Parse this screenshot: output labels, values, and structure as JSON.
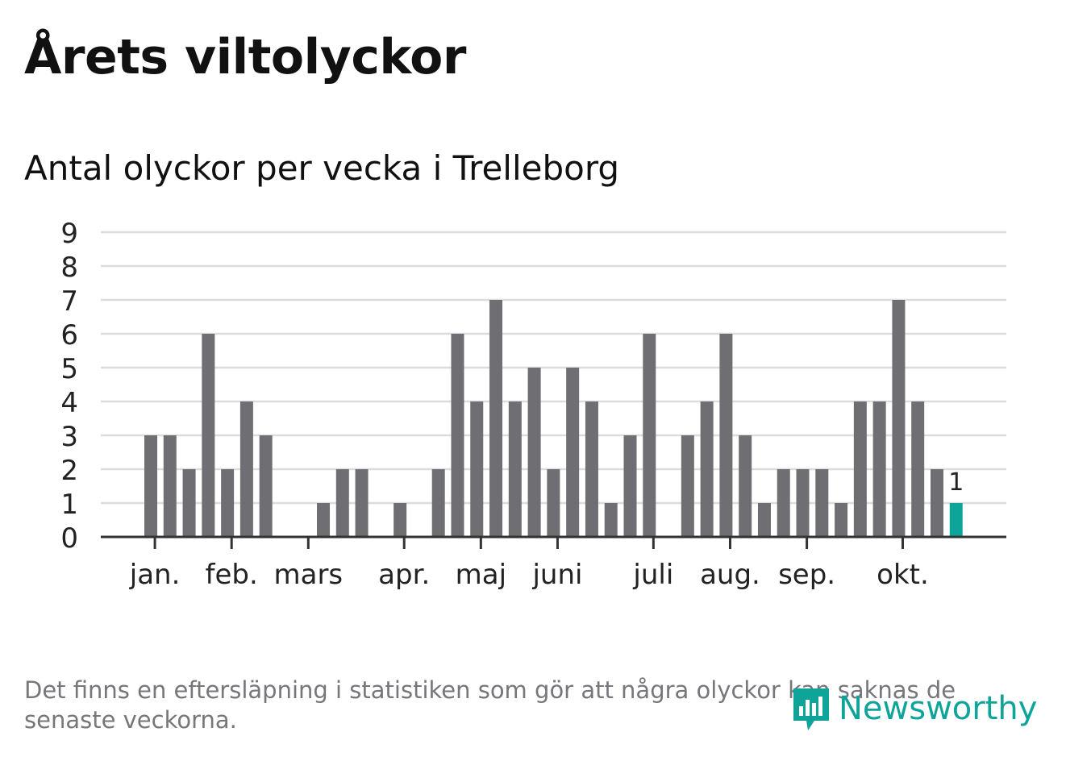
{
  "title": "Årets viltolyckor",
  "subtitle": "Antal olyckor per vecka i Trelleborg",
  "footnote": "Det finns en eftersläpning i statistiken som gör att några olyckor kan saknas de senaste veckorna.",
  "logo": {
    "text": "Newsworthy",
    "icon": "newsworthy-chart-bubble-icon"
  },
  "colors": {
    "bar": "#6f6e73",
    "highlight": "#0ea49a",
    "grid": "#dcdcdc",
    "axis": "#333333",
    "text": "#222222",
    "footnote": "#76767b"
  },
  "chart_data": {
    "type": "bar",
    "title": "Antal olyckor per vecka i Trelleborg",
    "xlabel": "",
    "ylabel": "",
    "ylim": [
      0,
      9
    ],
    "yticks": [
      0,
      1,
      2,
      3,
      4,
      5,
      6,
      7,
      8,
      9
    ],
    "grid": true,
    "weeks": [
      1,
      2,
      3,
      4,
      5,
      6,
      7,
      8,
      9,
      10,
      11,
      12,
      13,
      14,
      15,
      16,
      17,
      18,
      19,
      20,
      21,
      22,
      23,
      24,
      25,
      26,
      27,
      28,
      29,
      30,
      31,
      32,
      33,
      34,
      35,
      36,
      37,
      38,
      39,
      40,
      41,
      42,
      43
    ],
    "values": [
      3,
      3,
      2,
      6,
      2,
      4,
      3,
      0,
      0,
      1,
      2,
      2,
      0,
      1,
      0,
      2,
      6,
      4,
      7,
      4,
      5,
      2,
      5,
      4,
      1,
      3,
      6,
      0,
      3,
      4,
      6,
      3,
      1,
      2,
      2,
      2,
      1,
      4,
      4,
      7,
      4,
      2,
      1
    ],
    "highlight_index": 42,
    "highlight_label": "1",
    "month_ticks": [
      {
        "label": "jan.",
        "week": 1.55
      },
      {
        "label": "feb.",
        "week": 5.55
      },
      {
        "label": "mars",
        "week": 9.55
      },
      {
        "label": "apr.",
        "week": 14.55
      },
      {
        "label": "maj",
        "week": 18.55
      },
      {
        "label": "juni",
        "week": 22.55
      },
      {
        "label": "juli",
        "week": 27.55
      },
      {
        "label": "aug.",
        "week": 31.55
      },
      {
        "label": "sep.",
        "week": 35.55
      },
      {
        "label": "okt.",
        "week": 40.55
      }
    ]
  }
}
